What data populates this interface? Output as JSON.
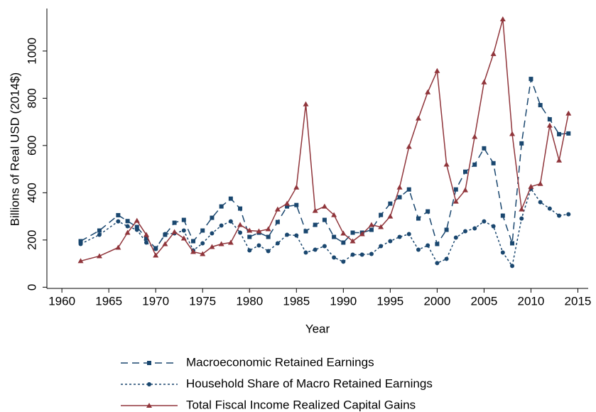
{
  "chart_data": {
    "type": "line",
    "x_label": "Year",
    "y_label": "Billions of Real USD (2014$)",
    "x": [
      1962,
      1964,
      1966,
      1967,
      1968,
      1969,
      1970,
      1971,
      1972,
      1973,
      1974,
      1975,
      1976,
      1977,
      1978,
      1979,
      1980,
      1981,
      1982,
      1983,
      1984,
      1985,
      1986,
      1987,
      1988,
      1989,
      1990,
      1991,
      1992,
      1993,
      1994,
      1995,
      1996,
      1997,
      1998,
      1999,
      2000,
      2001,
      2002,
      2003,
      2004,
      2005,
      2006,
      2007,
      2008,
      2009,
      2010,
      2011,
      2012,
      2013,
      2014
    ],
    "series": [
      {
        "name": "Macroeconomic Retained Earnings",
        "color": "#1a476f",
        "dash": "long",
        "marker": "square",
        "values": [
          195,
          240,
          305,
          280,
          255,
          207,
          165,
          222,
          273,
          285,
          195,
          240,
          294,
          342,
          375,
          333,
          213,
          231,
          213,
          276,
          342,
          348,
          237,
          264,
          285,
          213,
          189,
          231,
          231,
          243,
          306,
          354,
          381,
          414,
          291,
          321,
          183,
          243,
          414,
          489,
          519,
          588,
          525,
          303,
          186,
          609,
          882,
          771,
          711,
          648,
          651
        ]
      },
      {
        "name": "Household Share of Macro Retained Earnings",
        "color": "#1a476f",
        "dash": "short",
        "marker": "circle",
        "values": [
          183,
          222,
          279,
          258,
          243,
          189,
          162,
          225,
          228,
          240,
          156,
          186,
          228,
          261,
          279,
          231,
          156,
          177,
          153,
          186,
          222,
          219,
          147,
          159,
          174,
          126,
          108,
          138,
          138,
          141,
          174,
          195,
          213,
          225,
          159,
          177,
          102,
          120,
          210,
          237,
          249,
          279,
          258,
          147,
          90,
          291,
          417,
          360,
          333,
          303,
          309
        ]
      },
      {
        "name": "Total Fiscal Income Realized Capital Gains",
        "color": "#90353b",
        "dash": "solid",
        "marker": "triangle",
        "values": [
          111,
          132,
          168,
          231,
          282,
          222,
          135,
          183,
          234,
          207,
          150,
          141,
          171,
          183,
          189,
          264,
          240,
          237,
          246,
          330,
          354,
          423,
          775,
          324,
          342,
          306,
          228,
          195,
          225,
          264,
          255,
          300,
          423,
          595,
          715,
          826,
          916,
          520,
          363,
          411,
          637,
          868,
          988,
          1135,
          649,
          330,
          426,
          438,
          685,
          537,
          736
        ]
      }
    ],
    "xlim": [
      1958.4,
      2016.1
    ],
    "xticks": [
      1960,
      1965,
      1970,
      1975,
      1980,
      1985,
      1990,
      1995,
      2000,
      2005,
      2010,
      2015
    ],
    "ylim": [
      -5,
      1180
    ],
    "yticks": [
      0,
      200,
      400,
      600,
      800,
      1000
    ]
  }
}
